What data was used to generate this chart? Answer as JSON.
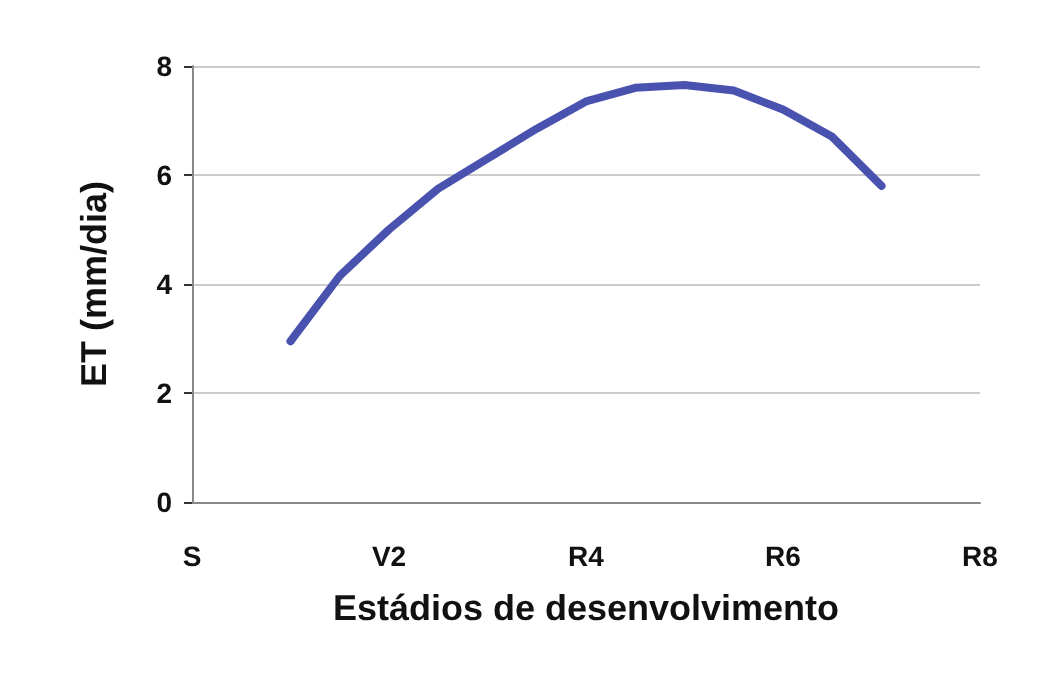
{
  "chart_data": {
    "type": "line",
    "xlabel": "Estádios de desenvolvimento",
    "ylabel": "ET (mm/dia)",
    "categories": [
      "S",
      null,
      null,
      null,
      "V2",
      null,
      null,
      null,
      "R4",
      null,
      null,
      null,
      "R6",
      null,
      null,
      null,
      "R8"
    ],
    "series": [
      {
        "color": "#4a52b0",
        "values": [
          null,
          null,
          2.95,
          4.15,
          5.0,
          5.75,
          6.3,
          6.85,
          7.35,
          7.6,
          7.65,
          7.55,
          7.2,
          6.7,
          5.8,
          null,
          null
        ]
      }
    ],
    "ylim": [
      0,
      8
    ],
    "yticks": [
      0,
      2,
      4,
      6,
      8
    ],
    "grid": "y",
    "marker": "none",
    "line_style": "solid"
  }
}
